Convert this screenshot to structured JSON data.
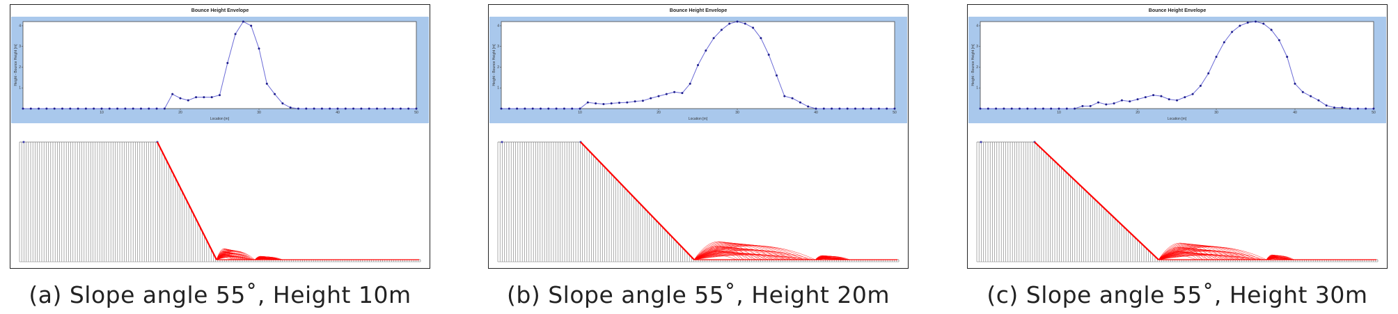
{
  "chart_data": [
    {
      "type": "line",
      "title": "Bounce Height Envelope",
      "xlabel": "Location [m]",
      "ylabel": "Height - Bounce Height [m]",
      "xlim": [
        0,
        50
      ],
      "x_ticks": [
        "10",
        "20",
        "30",
        "40",
        "50"
      ],
      "y_ticks": [
        "1",
        "2",
        "3",
        "4"
      ],
      "ylim": [
        0,
        4.2
      ],
      "x": [
        0,
        1,
        2,
        3,
        4,
        5,
        6,
        7,
        8,
        9,
        10,
        11,
        12,
        13,
        14,
        15,
        16,
        17,
        18,
        19,
        20,
        21,
        22,
        23,
        24,
        25,
        26,
        27,
        28,
        29,
        30,
        31,
        32,
        33,
        34,
        35,
        36,
        37,
        38,
        39,
        40,
        41,
        42,
        43,
        44,
        45,
        46,
        47,
        48,
        49,
        50
      ],
      "values": [
        0,
        0,
        0,
        0,
        0,
        0,
        0,
        0,
        0,
        0,
        0,
        0,
        0,
        0,
        0,
        0,
        0,
        0,
        0,
        0.7,
        0.5,
        0.4,
        0.55,
        0.55,
        0.55,
        0.65,
        2.2,
        3.6,
        4.2,
        4.0,
        2.9,
        1.2,
        0.7,
        0.25,
        0.05,
        0,
        0,
        0,
        0,
        0,
        0,
        0,
        0,
        0,
        0,
        0,
        0,
        0,
        0,
        0,
        0
      ],
      "caption": "(a) Slope angle 55˚, Height 10m"
    },
    {
      "type": "line",
      "title": "Bounce Height Envelope",
      "xlabel": "Location [m]",
      "ylabel": "Height - Bounce Height [m]",
      "xlim": [
        0,
        50
      ],
      "x_ticks": [
        "10",
        "20",
        "30",
        "40",
        "50"
      ],
      "y_ticks": [
        "1",
        "2",
        "3",
        "4"
      ],
      "ylim": [
        0,
        4.2
      ],
      "x": [
        0,
        1,
        2,
        3,
        4,
        5,
        6,
        7,
        8,
        9,
        10,
        11,
        12,
        13,
        14,
        15,
        16,
        17,
        18,
        19,
        20,
        21,
        22,
        23,
        24,
        25,
        26,
        27,
        28,
        29,
        30,
        31,
        32,
        33,
        34,
        35,
        36,
        37,
        38,
        39,
        40,
        41,
        42,
        43,
        44,
        45,
        46,
        47,
        48,
        49,
        50
      ],
      "values": [
        0,
        0,
        0,
        0,
        0,
        0,
        0,
        0,
        0,
        0,
        0,
        0.3,
        0.25,
        0.22,
        0.25,
        0.28,
        0.3,
        0.35,
        0.38,
        0.5,
        0.6,
        0.7,
        0.8,
        0.75,
        1.2,
        2.1,
        2.8,
        3.4,
        3.8,
        4.1,
        4.2,
        4.1,
        3.9,
        3.4,
        2.6,
        1.6,
        0.6,
        0.5,
        0.3,
        0.1,
        0,
        0,
        0,
        0,
        0,
        0,
        0,
        0,
        0,
        0,
        0
      ],
      "caption": "(b) Slope angle 55˚, Height 20m"
    },
    {
      "type": "line",
      "title": "Bounce Height Envelope",
      "xlabel": "Location [m]",
      "ylabel": "Height - Bounce Height [m]",
      "xlim": [
        0,
        50
      ],
      "x_ticks": [
        "10",
        "20",
        "30",
        "40",
        "50"
      ],
      "y_ticks": [
        "1",
        "2",
        "3",
        "4"
      ],
      "ylim": [
        0,
        4.2
      ],
      "x": [
        0,
        1,
        2,
        3,
        4,
        5,
        6,
        7,
        8,
        9,
        10,
        11,
        12,
        13,
        14,
        15,
        16,
        17,
        18,
        19,
        20,
        21,
        22,
        23,
        24,
        25,
        26,
        27,
        28,
        29,
        30,
        31,
        32,
        33,
        34,
        35,
        36,
        37,
        38,
        39,
        40,
        41,
        42,
        43,
        44,
        45,
        46,
        47,
        48,
        49,
        50
      ],
      "values": [
        0,
        0,
        0,
        0,
        0,
        0,
        0,
        0,
        0,
        0,
        0,
        0,
        0,
        0.12,
        0.12,
        0.3,
        0.2,
        0.25,
        0.4,
        0.35,
        0.45,
        0.55,
        0.65,
        0.6,
        0.45,
        0.4,
        0.55,
        0.7,
        1.1,
        1.7,
        2.5,
        3.2,
        3.7,
        4.0,
        4.15,
        4.2,
        4.1,
        3.8,
        3.3,
        2.5,
        1.2,
        0.8,
        0.6,
        0.4,
        0.15,
        0.05,
        0.05,
        0,
        0,
        0,
        0
      ],
      "caption": "(c) Slope angle 55˚, Height 30m"
    }
  ],
  "colors": {
    "plot_background": "#a9c8ec",
    "line": "#6a6ad6",
    "marker": "#1e1e8c",
    "trajectory": "#ff0000",
    "terrain": "#777777"
  }
}
